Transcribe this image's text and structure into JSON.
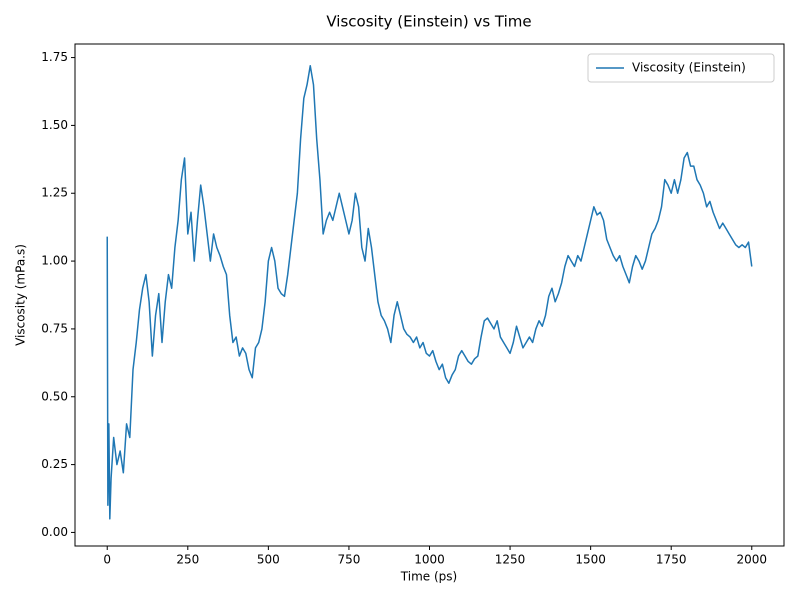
{
  "chart_data": {
    "type": "line",
    "title": "Viscosity (Einstein) vs Time",
    "xlabel": "Time (ps)",
    "ylabel": "Viscosity (mPa.s)",
    "x": [
      0,
      2,
      5,
      8,
      12,
      20,
      30,
      40,
      50,
      60,
      70,
      80,
      90,
      100,
      110,
      120,
      130,
      140,
      150,
      160,
      170,
      180,
      190,
      200,
      210,
      220,
      230,
      240,
      250,
      260,
      270,
      280,
      290,
      300,
      310,
      320,
      330,
      340,
      350,
      360,
      370,
      380,
      390,
      400,
      410,
      420,
      430,
      440,
      450,
      460,
      470,
      480,
      490,
      500,
      510,
      520,
      530,
      540,
      550,
      560,
      570,
      580,
      590,
      600,
      610,
      620,
      630,
      640,
      650,
      660,
      670,
      680,
      690,
      700,
      710,
      720,
      730,
      740,
      750,
      760,
      770,
      780,
      790,
      800,
      810,
      820,
      830,
      840,
      850,
      860,
      870,
      880,
      890,
      900,
      910,
      920,
      930,
      940,
      950,
      960,
      970,
      980,
      990,
      1000,
      1010,
      1020,
      1030,
      1040,
      1050,
      1060,
      1070,
      1080,
      1090,
      1100,
      1110,
      1120,
      1130,
      1140,
      1150,
      1160,
      1170,
      1180,
      1190,
      1200,
      1210,
      1220,
      1230,
      1240,
      1250,
      1260,
      1270,
      1280,
      1290,
      1300,
      1310,
      1320,
      1330,
      1340,
      1350,
      1360,
      1370,
      1380,
      1390,
      1400,
      1410,
      1420,
      1430,
      1440,
      1450,
      1460,
      1470,
      1480,
      1490,
      1500,
      1510,
      1520,
      1530,
      1540,
      1550,
      1560,
      1570,
      1580,
      1590,
      1600,
      1610,
      1620,
      1630,
      1640,
      1650,
      1660,
      1670,
      1680,
      1690,
      1700,
      1710,
      1720,
      1730,
      1740,
      1750,
      1760,
      1770,
      1780,
      1790,
      1800,
      1810,
      1820,
      1830,
      1840,
      1850,
      1860,
      1870,
      1880,
      1890,
      1900,
      1910,
      1920,
      1930,
      1940,
      1950,
      1960,
      1970,
      1980,
      1990,
      2000
    ],
    "series": [
      {
        "name": "Viscosity (Einstein)",
        "color": "#1f77b4",
        "values": [
          1.09,
          0.1,
          0.4,
          0.05,
          0.2,
          0.35,
          0.25,
          0.3,
          0.22,
          0.4,
          0.35,
          0.6,
          0.7,
          0.82,
          0.9,
          0.95,
          0.85,
          0.65,
          0.8,
          0.88,
          0.7,
          0.85,
          0.95,
          0.9,
          1.05,
          1.15,
          1.3,
          1.38,
          1.1,
          1.18,
          1.0,
          1.15,
          1.28,
          1.2,
          1.1,
          1.0,
          1.1,
          1.05,
          1.02,
          0.98,
          0.95,
          0.8,
          0.7,
          0.72,
          0.65,
          0.68,
          0.66,
          0.6,
          0.57,
          0.68,
          0.7,
          0.75,
          0.85,
          1.0,
          1.05,
          1.0,
          0.9,
          0.88,
          0.87,
          0.95,
          1.05,
          1.15,
          1.25,
          1.45,
          1.6,
          1.65,
          1.72,
          1.65,
          1.45,
          1.3,
          1.1,
          1.15,
          1.18,
          1.15,
          1.2,
          1.25,
          1.2,
          1.15,
          1.1,
          1.15,
          1.25,
          1.2,
          1.05,
          1.0,
          1.12,
          1.05,
          0.95,
          0.85,
          0.8,
          0.78,
          0.75,
          0.7,
          0.8,
          0.85,
          0.8,
          0.75,
          0.73,
          0.72,
          0.7,
          0.72,
          0.68,
          0.7,
          0.66,
          0.65,
          0.67,
          0.63,
          0.6,
          0.62,
          0.57,
          0.55,
          0.58,
          0.6,
          0.65,
          0.67,
          0.65,
          0.63,
          0.62,
          0.64,
          0.65,
          0.72,
          0.78,
          0.79,
          0.77,
          0.75,
          0.78,
          0.72,
          0.7,
          0.68,
          0.66,
          0.7,
          0.76,
          0.72,
          0.68,
          0.7,
          0.72,
          0.7,
          0.75,
          0.78,
          0.76,
          0.8,
          0.87,
          0.9,
          0.85,
          0.88,
          0.92,
          0.98,
          1.02,
          1.0,
          0.98,
          1.02,
          1.0,
          1.05,
          1.1,
          1.15,
          1.2,
          1.17,
          1.18,
          1.15,
          1.08,
          1.05,
          1.02,
          1.0,
          1.02,
          0.98,
          0.95,
          0.92,
          0.98,
          1.02,
          1.0,
          0.97,
          1.0,
          1.05,
          1.1,
          1.12,
          1.15,
          1.2,
          1.3,
          1.28,
          1.25,
          1.3,
          1.25,
          1.3,
          1.38,
          1.4,
          1.35,
          1.35,
          1.3,
          1.28,
          1.25,
          1.2,
          1.22,
          1.18,
          1.15,
          1.12,
          1.14,
          1.12,
          1.1,
          1.08,
          1.06,
          1.05,
          1.06,
          1.05,
          1.07,
          0.98
        ]
      }
    ],
    "xlim": [
      -100,
      2100
    ],
    "ylim": [
      -0.05,
      1.8
    ],
    "xticks": [
      0,
      250,
      500,
      750,
      1000,
      1250,
      1500,
      1750,
      2000
    ],
    "yticks": [
      {
        "value": 0,
        "label": "0.00"
      },
      {
        "value": 0.25,
        "label": "0.25"
      },
      {
        "value": 0.5,
        "label": "0.50"
      },
      {
        "value": 0.75,
        "label": "0.75"
      },
      {
        "value": 1,
        "label": "1.00"
      },
      {
        "value": 1.25,
        "label": "1.25"
      },
      {
        "value": 1.5,
        "label": "1.50"
      },
      {
        "value": 1.75,
        "label": "1.75"
      }
    ],
    "legend": "upper right",
    "grid": false
  }
}
